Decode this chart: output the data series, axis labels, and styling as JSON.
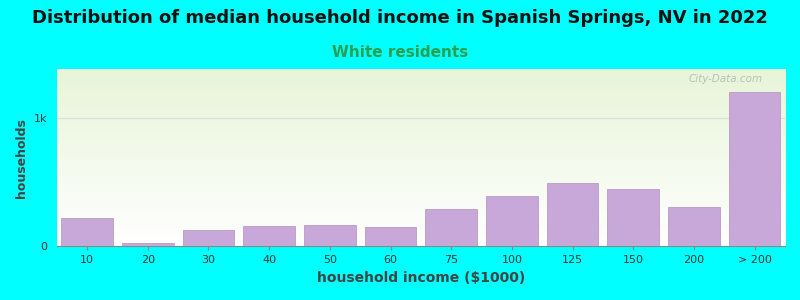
{
  "title": "Distribution of median household income in Spanish Springs, NV in 2022",
  "subtitle": "White residents",
  "xlabel": "household income ($1000)",
  "ylabel": "households",
  "background_outer": "#00FFFF",
  "background_inner_top": "#e8f5d8",
  "background_inner_bottom": "#ffffff",
  "bar_color": "#c8a8d8",
  "bar_edge_color": "#b090c0",
  "grid_color": "#dddddd",
  "title_fontsize": 13,
  "subtitle_fontsize": 11,
  "subtitle_color": "#28a050",
  "axis_label_color": "#444444",
  "categories": [
    "10",
    "20",
    "30",
    "40",
    "50",
    "60",
    "75",
    "100",
    "125",
    "150",
    "200",
    "> 200"
  ],
  "values": [
    220,
    30,
    130,
    155,
    170,
    150,
    290,
    390,
    490,
    450,
    310,
    1200
  ],
  "ytick_labels": [
    "0",
    "1k"
  ],
  "ytick_values": [
    0,
    1000
  ],
  "ylim": [
    0,
    1380
  ],
  "watermark_text": "City-Data.com",
  "watermark_color": "#b0b8b0"
}
